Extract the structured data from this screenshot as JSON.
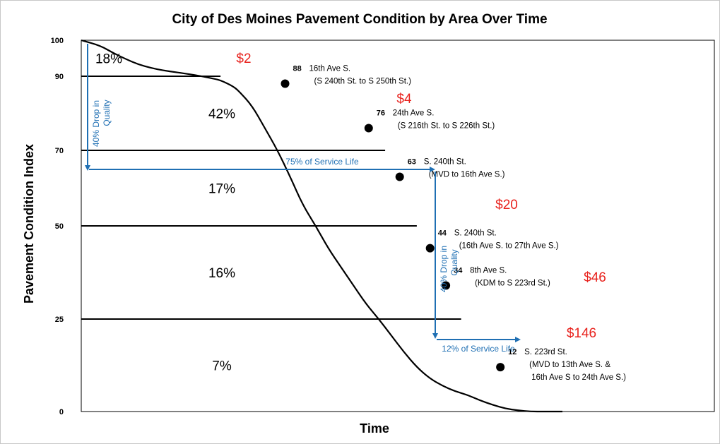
{
  "chart_data": {
    "type": "line",
    "title": "City of Des Moines Pavement Condition by Area Over Time",
    "xlabel": "Time",
    "ylabel": "Pavement Condition Index",
    "y_ticks": [
      "100",
      "90",
      "70",
      "50",
      "25",
      "0"
    ],
    "y_tick_values": [
      100,
      90,
      70,
      50,
      25,
      0
    ],
    "ylim": [
      0,
      100
    ],
    "grid": false,
    "curve": {
      "x": [
        0,
        3,
        5,
        7,
        9,
        11,
        13,
        15,
        17,
        19,
        21,
        22,
        24,
        25,
        27,
        29,
        31,
        33,
        35,
        37,
        39,
        41,
        43,
        45,
        47,
        49,
        51,
        53,
        55,
        57,
        59,
        61,
        63,
        65,
        67,
        69,
        71,
        73,
        75,
        76
      ],
      "y": [
        100,
        98.5,
        96.5,
        94.8,
        93.3,
        92.3,
        91.6,
        91.1,
        90.6,
        90.0,
        89.3,
        88.9,
        87.3,
        85.8,
        82.0,
        76.0,
        70.0,
        63.0,
        55.5,
        50.1,
        44.0,
        39.0,
        34.0,
        29.0,
        25.0,
        20.5,
        16.0,
        12.0,
        9.0,
        7.0,
        5.5,
        4.5,
        3.0,
        1.8,
        0.8,
        0.3,
        0.0,
        0.0,
        0.0,
        0.0
      ]
    },
    "bands": [
      {
        "from": 90,
        "to": 100,
        "share": "18%",
        "line_to_x": 22
      },
      {
        "from": 70,
        "to": 90,
        "share": "42%",
        "line_to_x": 48
      },
      {
        "from": 50,
        "to": 70,
        "share": "17%",
        "line_to_x": 53
      },
      {
        "from": 25,
        "to": 50,
        "share": "16%",
        "line_to_x": 60
      },
      {
        "from": 0,
        "to": 25,
        "share": "7%"
      }
    ],
    "points": [
      {
        "value": "88",
        "x": 32.2,
        "y": 88,
        "name1": "16th Ave S.",
        "name2": "(S 240th St. to S 250th St.)"
      },
      {
        "value": "76",
        "x": 45.4,
        "y": 76,
        "name1": "24th Ave S.",
        "name2": "(S 216th St. to S 226th St.)"
      },
      {
        "value": "63",
        "x": 50.3,
        "y": 63,
        "name1": "S. 240th St.",
        "name2": "(MVD to 16th Ave S.)"
      },
      {
        "value": "44",
        "x": 55.1,
        "y": 44,
        "name1": "S. 240th St.",
        "name2": "(16th Ave S. to 27th Ave S.)"
      },
      {
        "value": "34",
        "x": 57.6,
        "y": 34,
        "name1": "8th Ave S.",
        "name2": "(KDM to  S 223rd St.)"
      },
      {
        "value": "12",
        "x": 66.2,
        "y": 12,
        "name1": "S. 223rd St.",
        "name2": "(MVD to 13th Ave S. &",
        "name3": "16th Ave S to 24th Ave S.)"
      }
    ],
    "costs": [
      "$2",
      "$4",
      "$20",
      "$46",
      "$146"
    ],
    "annotations": {
      "drop1": [
        "40% Drop in",
        "Quality"
      ],
      "service1": "75% of Service Life",
      "drop2": [
        "40% Drop in",
        "Quality"
      ],
      "service2": "12% of Service Life"
    },
    "colors": {
      "curve": "#000000",
      "annotation": "#1f6fb3",
      "cost": "#e8231e",
      "band_line": "#000000"
    }
  }
}
